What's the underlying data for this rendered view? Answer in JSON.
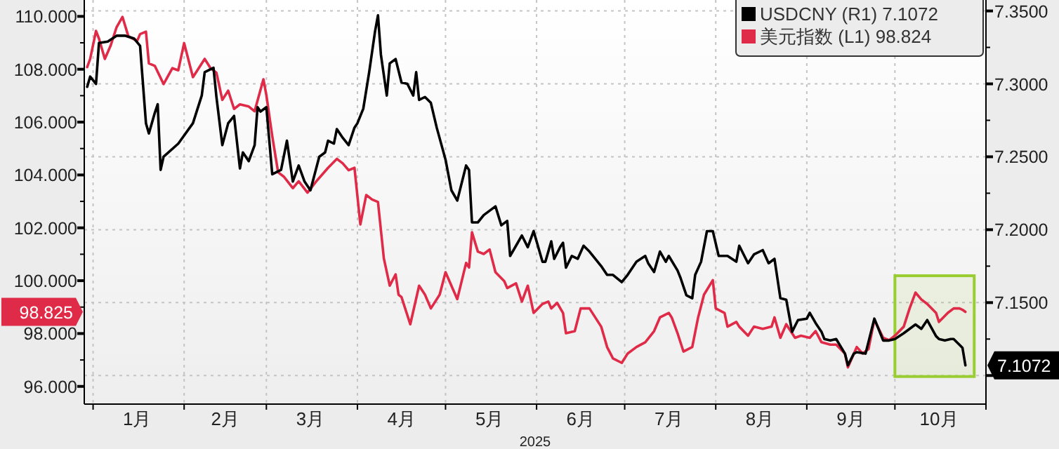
{
  "chart_data": {
    "type": "line",
    "xlabel": "2025",
    "xlim": [
      "2024-12-29",
      "2025-11-01"
    ],
    "xticks": [
      {
        "value": "2025-01-01",
        "label": null
      },
      {
        "value": "2025-01-16",
        "label": "1月"
      },
      {
        "value": "2025-02-01",
        "label": null
      },
      {
        "value": "2025-02-15",
        "label": "2月"
      },
      {
        "value": "2025-03-01",
        "label": null
      },
      {
        "value": "2025-03-16",
        "label": "3月"
      },
      {
        "value": "2025-04-01",
        "label": null
      },
      {
        "value": "2025-04-16",
        "label": "4月"
      },
      {
        "value": "2025-05-01",
        "label": null
      },
      {
        "value": "2025-05-16",
        "label": "5月"
      },
      {
        "value": "2025-06-01",
        "label": null
      },
      {
        "value": "2025-06-16",
        "label": "6月"
      },
      {
        "value": "2025-07-01",
        "label": null
      },
      {
        "value": "2025-07-16",
        "label": "7月"
      },
      {
        "value": "2025-08-01",
        "label": null
      },
      {
        "value": "2025-08-16",
        "label": "8月"
      },
      {
        "value": "2025-09-01",
        "label": null
      },
      {
        "value": "2025-09-16",
        "label": "9月"
      },
      {
        "value": "2025-10-01",
        "label": null
      },
      {
        "value": "2025-10-16",
        "label": "10月"
      },
      {
        "value": "2025-11-01",
        "label": null
      }
    ],
    "ylim": [
      95.33,
      110.62
    ],
    "yticks": [
      {
        "value": 96,
        "label": "96.000"
      },
      {
        "value": 97,
        "label": null
      },
      {
        "value": 98,
        "label": "98.000"
      },
      {
        "value": 99,
        "label": null
      },
      {
        "value": 100,
        "label": "100.000"
      },
      {
        "value": 101,
        "label": null
      },
      {
        "value": 102,
        "label": "102.000"
      },
      {
        "value": 103,
        "label": null
      },
      {
        "value": 104,
        "label": "104.000"
      },
      {
        "value": 105,
        "label": null
      },
      {
        "value": 106,
        "label": "106.000"
      },
      {
        "value": 107,
        "label": null
      },
      {
        "value": 108,
        "label": "108.000"
      },
      {
        "value": 109,
        "label": null
      },
      {
        "value": 110,
        "label": "110.000"
      }
    ],
    "y2lim": [
      7.0804,
      7.3575
    ],
    "y2ticks": [
      {
        "value": 7.1,
        "label": null
      },
      {
        "value": 7.125,
        "label": null
      },
      {
        "value": 7.15,
        "label": "7.1500"
      },
      {
        "value": 7.175,
        "label": null
      },
      {
        "value": 7.2,
        "label": "7.2000"
      },
      {
        "value": 7.225,
        "label": null
      },
      {
        "value": 7.25,
        "label": "7.2500"
      },
      {
        "value": 7.275,
        "label": null
      },
      {
        "value": 7.3,
        "label": "7.3000"
      },
      {
        "value": 7.325,
        "label": null
      },
      {
        "value": 7.35,
        "label": "7.3500"
      }
    ],
    "grid": true,
    "legend": "top right",
    "series": [
      {
        "name": "USDCNY (R1) 7.1072",
        "color": "#000000",
        "axis": "y2",
        "x": [
          "2024-12-30",
          "2024-12-31",
          "2025-01-02",
          "2025-01-03",
          "2025-01-06",
          "2025-01-09",
          "2025-01-12",
          "2025-01-15",
          "2025-01-17",
          "2025-01-19",
          "2025-01-20",
          "2025-01-22",
          "2025-01-23",
          "2025-01-24",
          "2025-01-25",
          "2025-01-30",
          "2025-02-04",
          "2025-02-07",
          "2025-02-08",
          "2025-02-11",
          "2025-02-12",
          "2025-02-14",
          "2025-02-16",
          "2025-02-18",
          "2025-02-20",
          "2025-02-21",
          "2025-02-23",
          "2025-02-25",
          "2025-02-26",
          "2025-02-27",
          "2025-03-01",
          "2025-03-03",
          "2025-03-06",
          "2025-03-08",
          "2025-03-10",
          "2025-03-12",
          "2025-03-14",
          "2025-03-16",
          "2025-03-19",
          "2025-03-21",
          "2025-03-22",
          "2025-03-24",
          "2025-03-25",
          "2025-03-27",
          "2025-03-29",
          "2025-03-31",
          "2025-04-01",
          "2025-04-03",
          "2025-04-05",
          "2025-04-07",
          "2025-04-08",
          "2025-04-09",
          "2025-04-11",
          "2025-04-12",
          "2025-04-14",
          "2025-04-16",
          "2025-04-18",
          "2025-04-20",
          "2025-04-21",
          "2025-04-22",
          "2025-04-24",
          "2025-04-26",
          "2025-04-28",
          "2025-05-01",
          "2025-05-03",
          "2025-05-05",
          "2025-05-08",
          "2025-05-09",
          "2025-05-10",
          "2025-05-12",
          "2025-05-14",
          "2025-05-16",
          "2025-05-18",
          "2025-05-20",
          "2025-05-22",
          "2025-05-23",
          "2025-05-25",
          "2025-05-27",
          "2025-05-29",
          "2025-05-31",
          "2025-06-01",
          "2025-06-03",
          "2025-06-04",
          "2025-06-06",
          "2025-06-07",
          "2025-06-09",
          "2025-06-10",
          "2025-06-11",
          "2025-06-13",
          "2025-06-15",
          "2025-06-17",
          "2025-06-19",
          "2025-06-23",
          "2025-06-25",
          "2025-06-27",
          "2025-06-30",
          "2025-07-02",
          "2025-07-05",
          "2025-07-08",
          "2025-07-09",
          "2025-07-11",
          "2025-07-13",
          "2025-07-15",
          "2025-07-16",
          "2025-07-19",
          "2025-07-20",
          "2025-07-22",
          "2025-07-24",
          "2025-07-25",
          "2025-07-27",
          "2025-07-29",
          "2025-07-31",
          "2025-08-02",
          "2025-08-05",
          "2025-08-08",
          "2025-08-09",
          "2025-08-12",
          "2025-08-14",
          "2025-08-17",
          "2025-08-19",
          "2025-08-21",
          "2025-08-23",
          "2025-08-25",
          "2025-08-27",
          "2025-08-29",
          "2025-09-01",
          "2025-09-02",
          "2025-09-04",
          "2025-09-06",
          "2025-09-07",
          "2025-09-09",
          "2025-09-11",
          "2025-09-14",
          "2025-09-15",
          "2025-09-17",
          "2025-09-18",
          "2025-09-21",
          "2025-09-24",
          "2025-09-27",
          "2025-09-29",
          "2025-10-01",
          "2025-10-04",
          "2025-10-06",
          "2025-10-08",
          "2025-10-10",
          "2025-10-12",
          "2025-10-15",
          "2025-10-16",
          "2025-10-18",
          "2025-10-20",
          "2025-10-21",
          "2025-10-24",
          "2025-10-25"
        ],
        "values": [
          7.298,
          7.305,
          7.3,
          7.328,
          7.329,
          7.333,
          7.333,
          7.331,
          7.326,
          7.273,
          7.266,
          7.28,
          7.286,
          7.241,
          7.25,
          7.259,
          7.273,
          7.292,
          7.308,
          7.311,
          7.291,
          7.258,
          7.273,
          7.278,
          7.242,
          7.253,
          7.247,
          7.258,
          7.284,
          7.281,
          7.284,
          7.238,
          7.241,
          7.261,
          7.233,
          7.244,
          7.233,
          7.227,
          7.25,
          7.253,
          7.261,
          7.259,
          7.269,
          7.263,
          7.258,
          7.27,
          7.273,
          7.283,
          7.308,
          7.336,
          7.347,
          7.32,
          7.292,
          7.314,
          7.317,
          7.301,
          7.3,
          7.292,
          7.308,
          7.289,
          7.291,
          7.287,
          7.27,
          7.248,
          7.227,
          7.22,
          7.244,
          7.241,
          7.205,
          7.205,
          7.21,
          7.213,
          7.216,
          7.203,
          7.206,
          7.182,
          7.189,
          7.196,
          7.188,
          7.199,
          7.192,
          7.178,
          7.178,
          7.192,
          7.18,
          7.188,
          7.191,
          7.174,
          7.182,
          7.18,
          7.189,
          7.185,
          7.175,
          7.169,
          7.169,
          7.164,
          7.169,
          7.178,
          7.182,
          7.177,
          7.171,
          7.185,
          7.178,
          7.182,
          7.172,
          7.167,
          7.155,
          7.153,
          7.169,
          7.178,
          7.199,
          7.199,
          7.182,
          7.182,
          7.178,
          7.189,
          7.177,
          7.183,
          7.186,
          7.177,
          7.18,
          7.153,
          7.152,
          7.13,
          7.138,
          7.139,
          7.143,
          7.136,
          7.13,
          7.125,
          7.124,
          7.125,
          7.115,
          7.107,
          7.115,
          7.116,
          7.115,
          7.139,
          7.124,
          7.124,
          7.125,
          7.129,
          7.132,
          7.135,
          7.132,
          7.138,
          7.127,
          7.125,
          7.124,
          7.125,
          7.125,
          7.119,
          7.107
        ]
      },
      {
        "name": "美元指数 (L1) 98.824",
        "color": "#e02b48",
        "x": [
          "2024-12-30",
          "2024-12-31",
          "2025-01-02",
          "2025-01-03",
          "2025-01-05",
          "2025-01-07",
          "2025-01-09",
          "2025-01-11",
          "2025-01-13",
          "2025-01-16",
          "2025-01-17",
          "2025-01-19",
          "2025-01-20",
          "2025-01-22",
          "2025-01-25",
          "2025-01-28",
          "2025-01-30",
          "2025-02-01",
          "2025-02-04",
          "2025-02-05",
          "2025-02-08",
          "2025-02-10",
          "2025-02-12",
          "2025-02-14",
          "2025-02-16",
          "2025-02-18",
          "2025-02-20",
          "2025-02-23",
          "2025-02-25",
          "2025-02-28",
          "2025-03-01",
          "2025-03-03",
          "2025-03-05",
          "2025-03-07",
          "2025-03-10",
          "2025-03-12",
          "2025-03-15",
          "2025-03-18",
          "2025-03-22",
          "2025-03-25",
          "2025-03-27",
          "2025-03-29",
          "2025-03-31",
          "2025-04-02",
          "2025-04-04",
          "2025-04-06",
          "2025-04-08",
          "2025-04-10",
          "2025-04-12",
          "2025-04-14",
          "2025-04-15",
          "2025-04-16",
          "2025-04-19",
          "2025-04-22",
          "2025-04-24",
          "2025-04-26",
          "2025-04-29",
          "2025-05-01",
          "2025-05-03",
          "2025-05-05",
          "2025-05-08",
          "2025-05-09",
          "2025-05-10",
          "2025-05-12",
          "2025-05-14",
          "2025-05-16",
          "2025-05-18",
          "2025-05-21",
          "2025-05-22",
          "2025-05-25",
          "2025-05-27",
          "2025-05-29",
          "2025-05-31",
          "2025-06-03",
          "2025-06-05",
          "2025-06-06",
          "2025-06-08",
          "2025-06-10",
          "2025-06-11",
          "2025-06-14",
          "2025-06-16",
          "2025-06-19",
          "2025-06-23",
          "2025-06-25",
          "2025-06-27",
          "2025-06-30",
          "2025-07-02",
          "2025-07-05",
          "2025-07-08",
          "2025-07-11",
          "2025-07-13",
          "2025-07-16",
          "2025-07-17",
          "2025-07-19",
          "2025-07-21",
          "2025-07-24",
          "2025-07-26",
          "2025-07-28",
          "2025-07-31",
          "2025-08-01",
          "2025-08-04",
          "2025-08-05",
          "2025-08-08",
          "2025-08-09",
          "2025-08-12",
          "2025-08-14",
          "2025-08-17",
          "2025-08-20",
          "2025-08-21",
          "2025-08-23",
          "2025-08-25",
          "2025-08-28",
          "2025-08-30",
          "2025-09-02",
          "2025-09-04",
          "2025-09-06",
          "2025-09-09",
          "2025-09-11",
          "2025-09-14",
          "2025-09-15",
          "2025-09-18",
          "2025-09-20",
          "2025-09-22",
          "2025-09-24",
          "2025-09-27",
          "2025-09-29",
          "2025-10-01",
          "2025-10-04",
          "2025-10-06",
          "2025-10-08",
          "2025-10-10",
          "2025-10-12",
          "2025-10-15",
          "2025-10-16",
          "2025-10-19",
          "2025-10-21",
          "2025-10-23",
          "2025-10-24",
          "2025-10-25"
        ],
        "values": [
          108.08,
          108.39,
          109.45,
          109.16,
          108.39,
          108.9,
          109.59,
          109.98,
          109.25,
          109.07,
          109.33,
          109.42,
          108.22,
          108.13,
          107.44,
          108.04,
          107.96,
          108.99,
          107.7,
          107.87,
          108.39,
          108.04,
          107.87,
          106.84,
          107.19,
          106.5,
          106.67,
          106.59,
          106.41,
          107.62,
          107.02,
          105.47,
          104.1,
          103.93,
          103.5,
          103.76,
          103.33,
          103.76,
          104.27,
          104.61,
          104.44,
          104.18,
          104.27,
          102.13,
          103.24,
          103.07,
          102.98,
          100.84,
          99.81,
          100.24,
          99.47,
          99.38,
          98.35,
          99.81,
          99.47,
          98.95,
          99.47,
          100.32,
          99.81,
          99.3,
          100.67,
          100.5,
          101.83,
          101.1,
          101.01,
          101.18,
          100.32,
          99.98,
          99.72,
          99.9,
          99.21,
          99.81,
          98.78,
          99.12,
          99.21,
          98.95,
          99.16,
          98.78,
          98.01,
          98.09,
          98.95,
          98.95,
          98.26,
          97.49,
          97.06,
          96.89,
          97.24,
          97.49,
          97.67,
          98.09,
          98.61,
          98.78,
          98.61,
          98.01,
          97.32,
          97.49,
          98.61,
          99.47,
          100.02,
          98.95,
          98.78,
          98.26,
          98.44,
          98.26,
          97.92,
          98.26,
          98.18,
          98.26,
          98.61,
          97.84,
          98.35,
          97.84,
          97.92,
          97.84,
          98.09,
          97.67,
          97.58,
          97.58,
          97.24,
          96.72,
          97.49,
          97.24,
          97.41,
          98.52,
          97.84,
          97.75,
          97.92,
          98.26,
          98.95,
          99.55,
          99.29,
          99.12,
          98.78,
          98.44,
          98.78,
          98.95,
          98.95,
          98.9,
          98.82
        ]
      }
    ],
    "annotations": [
      "7.1072",
      "98.825"
    ],
    "bands": [
      {
        "axis": "x",
        "from": "2025-10-01",
        "to": "2025-10-28",
        "color": "#9acd32"
      }
    ]
  }
}
